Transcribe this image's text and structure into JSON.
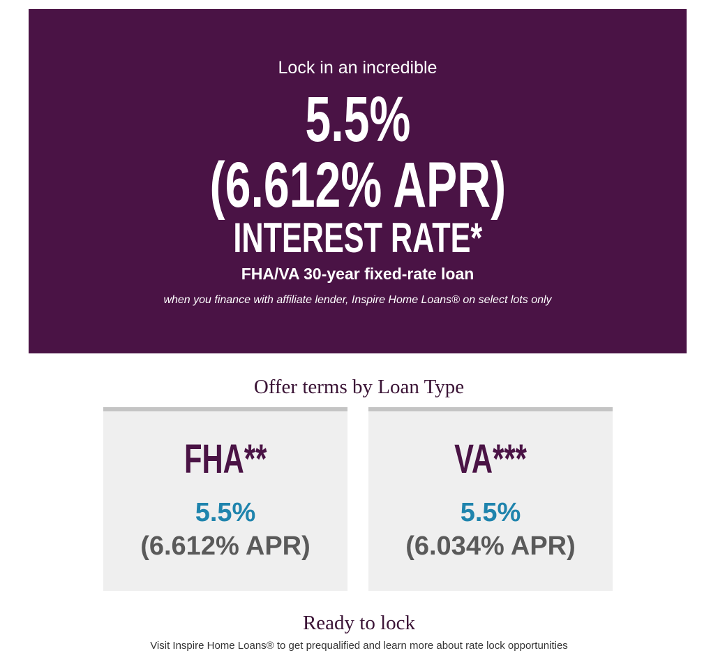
{
  "banner": {
    "lead": "Lock in an incredible",
    "rate": "5.5%",
    "apr": "(6.612% APR)",
    "label": "INTEREST RATE*",
    "loan": "FHA/VA 30-year fixed-rate loan",
    "note": "when you finance with affiliate lender, Inspire Home Loans® on select lots only"
  },
  "offers": {
    "title": "Offer terms by Loan Type",
    "cards": [
      {
        "type": "FHA**",
        "rate": "5.5%",
        "apr": "(6.612% APR)"
      },
      {
        "type": "VA***",
        "rate": "5.5%",
        "apr": "(6.034% APR)"
      }
    ]
  },
  "ready": {
    "title": "Ready to lock",
    "text": "Visit Inspire Home Loans® to get prequalified and learn more about rate lock opportunities"
  },
  "colors": {
    "banner": "#4a1345",
    "rate": "#1f84ad",
    "apr": "#5a5a5a"
  }
}
